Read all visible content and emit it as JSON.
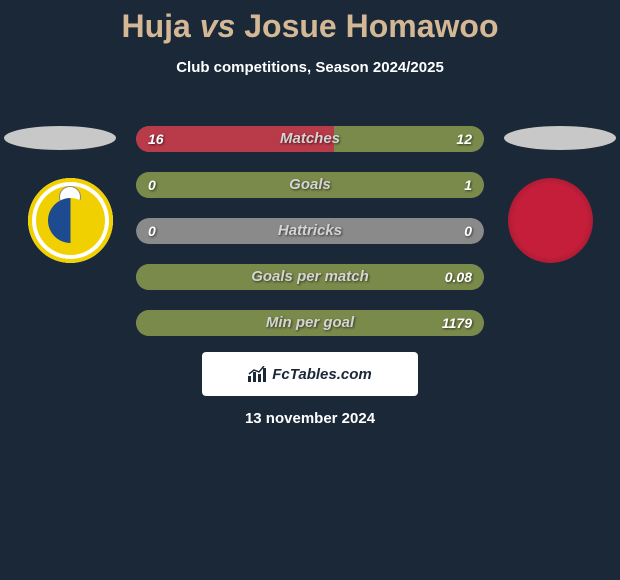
{
  "title": {
    "player1": "Huja",
    "vs": "vs",
    "player2": "Josue Homawoo"
  },
  "subtitle": "Club competitions, Season 2024/2025",
  "colors": {
    "background": "#1a2838",
    "title_color": "#d4b896",
    "text_color": "#ffffff",
    "bar_left": "#b93a49",
    "bar_right": "#7a8a4a",
    "bar_inactive": "#8a8a8a",
    "label_color": "#d4d4d4",
    "ellipse": "#c8c8c8"
  },
  "stats": [
    {
      "label": "Matches",
      "left_val": "16",
      "right_val": "12",
      "left_pct": 57,
      "right_pct": 43,
      "left_active": true,
      "right_active": true
    },
    {
      "label": "Goals",
      "left_val": "0",
      "right_val": "1",
      "left_pct": 0,
      "right_pct": 100,
      "left_active": false,
      "right_active": true
    },
    {
      "label": "Hattricks",
      "left_val": "0",
      "right_val": "0",
      "left_pct": 0,
      "right_pct": 0,
      "left_active": false,
      "right_active": false
    },
    {
      "label": "Goals per match",
      "left_val": "",
      "right_val": "0.08",
      "left_pct": 0,
      "right_pct": 100,
      "left_active": false,
      "right_active": true
    },
    {
      "label": "Min per goal",
      "left_val": "",
      "right_val": "1179",
      "left_pct": 0,
      "right_pct": 100,
      "left_active": false,
      "right_active": true
    }
  ],
  "branding": "FcTables.com",
  "date": "13 november 2024"
}
